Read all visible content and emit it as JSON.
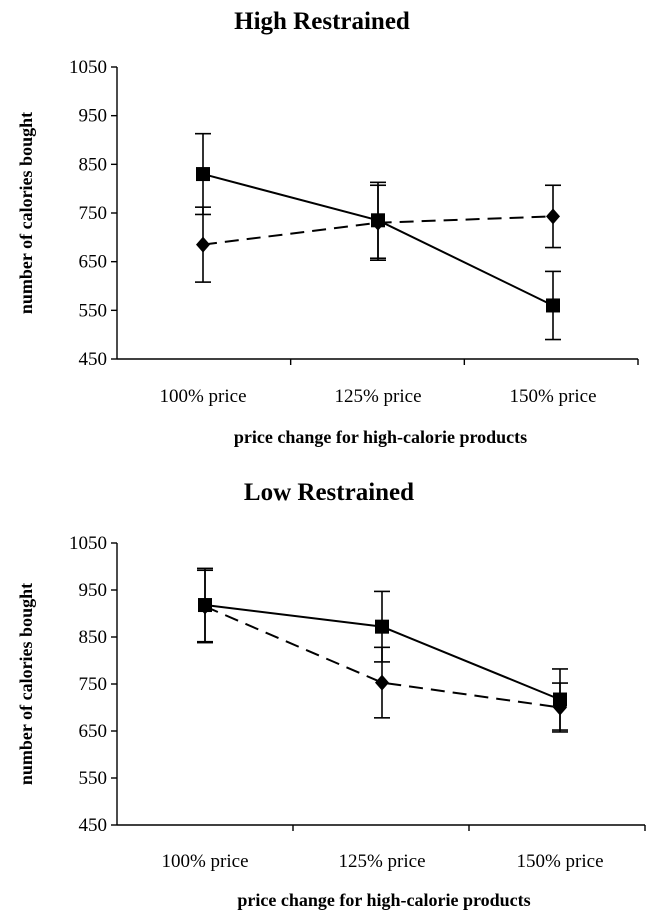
{
  "chart_data": [
    {
      "type": "line",
      "title": "High Restrained",
      "xlabel": "price change for high-calorie products",
      "ylabel": "number of calories bought",
      "categories": [
        "100% price",
        "125% price",
        "150% price"
      ],
      "ylim": [
        450,
        1050
      ],
      "yticks": [
        450,
        550,
        650,
        750,
        850,
        950,
        1050
      ],
      "series": [
        {
          "marker": "square",
          "line_style": "solid",
          "values": [
            830,
            735,
            560
          ],
          "errors": [
            83,
            78,
            70
          ]
        },
        {
          "marker": "diamond",
          "line_style": "dashed",
          "values": [
            685,
            730,
            743
          ],
          "errors": [
            77,
            77,
            64
          ]
        }
      ]
    },
    {
      "type": "line",
      "title": "Low Restrained",
      "xlabel": "price change for high-calorie products",
      "ylabel": "number of calories bought",
      "categories": [
        "100% price",
        "125% price",
        "150% price"
      ],
      "ylim": [
        450,
        1050
      ],
      "yticks": [
        450,
        550,
        650,
        750,
        850,
        950,
        1050
      ],
      "series": [
        {
          "marker": "square",
          "line_style": "solid",
          "values": [
            918,
            872,
            717
          ],
          "errors": [
            78,
            75,
            65
          ]
        },
        {
          "marker": "diamond",
          "line_style": "dashed",
          "values": [
            915,
            753,
            700
          ],
          "errors": [
            77,
            75,
            52
          ]
        }
      ]
    }
  ]
}
